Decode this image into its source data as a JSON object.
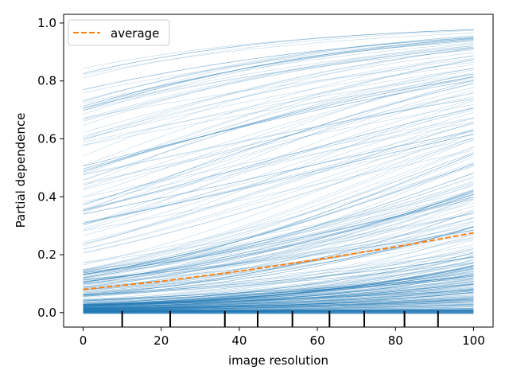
{
  "chart_data": {
    "type": "line",
    "title": "",
    "xlabel": "image resolution",
    "ylabel": "Partial dependence",
    "xlim": [
      -5,
      105
    ],
    "ylim": [
      -0.05,
      1.03
    ],
    "xticks": [
      0,
      20,
      40,
      60,
      80,
      100
    ],
    "yticks": [
      0.0,
      0.2,
      0.4,
      0.6,
      0.8,
      1.0
    ],
    "x": [
      0,
      20,
      40,
      60,
      80,
      100
    ],
    "ice": {
      "n_curves": 300,
      "start_range": [
        0.0,
        0.87
      ],
      "end_range": [
        0.0,
        0.985
      ],
      "color": "#1f77b4"
    },
    "average": {
      "name": "average",
      "x": [
        0,
        20,
        40,
        60,
        80,
        100
      ],
      "values": [
        0.08,
        0.108,
        0.143,
        0.183,
        0.227,
        0.275
      ],
      "color": "#ff7f0e",
      "style": "dashed"
    },
    "rug_x": [
      10,
      22.3,
      36.3,
      44.7,
      53.6,
      63.1,
      72,
      82.3,
      90.9
    ],
    "legend": {
      "position": "top-left",
      "entries": [
        "average"
      ]
    },
    "grid": false
  }
}
